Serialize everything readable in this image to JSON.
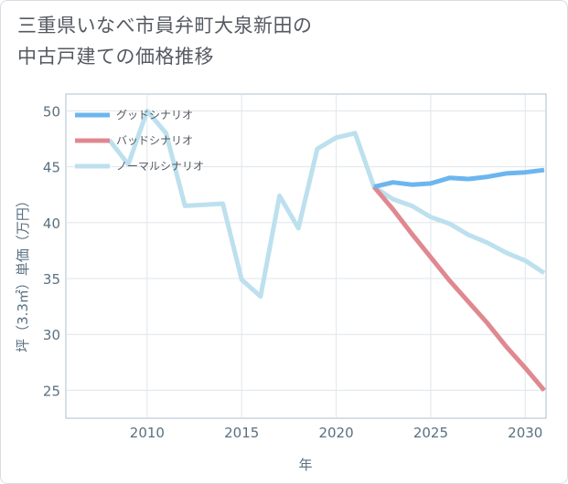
{
  "chart_data": {
    "type": "line",
    "title_lines": [
      "三重県いなべ市員弁町大泉新田の",
      "中古戸建ての価格推移"
    ],
    "xlabel": "年",
    "ylabel": "坪（3.3㎡）単価（万円）",
    "xlim": [
      2005.7,
      2031.1
    ],
    "ylim": [
      22.5,
      51.5
    ],
    "x_ticks": [
      2010,
      2015,
      2020,
      2025,
      2030
    ],
    "y_ticks": [
      25,
      30,
      35,
      40,
      45,
      50
    ],
    "grid": true,
    "legend_position": "top-left",
    "series": [
      {
        "name": "グッドシナリオ",
        "color": "#6cb6ef",
        "x": [
          2022,
          2023,
          2024,
          2025,
          2026,
          2027,
          2028,
          2029,
          2030,
          2031
        ],
        "y": [
          43.2,
          43.6,
          43.4,
          43.5,
          44.0,
          43.9,
          44.1,
          44.4,
          44.5,
          44.7
        ]
      },
      {
        "name": "バッドシナリオ",
        "color": "#e08890",
        "x": [
          2022,
          2023,
          2024,
          2025,
          2026,
          2027,
          2028,
          2029,
          2030,
          2031
        ],
        "y": [
          43.2,
          41.2,
          39.0,
          36.9,
          34.8,
          32.9,
          31.0,
          28.9,
          27.0,
          25.0
        ]
      },
      {
        "name": "ノーマルシナリオ",
        "color": "#bde0ee",
        "x": [
          2008,
          2009,
          2010,
          2011,
          2012,
          2013,
          2014,
          2015,
          2016,
          2017,
          2018,
          2019,
          2020,
          2021,
          2022,
          2023,
          2024,
          2025,
          2026,
          2027,
          2028,
          2029,
          2030,
          2031
        ],
        "y": [
          47.4,
          45.2,
          50.0,
          48.0,
          41.5,
          41.6,
          41.7,
          34.9,
          33.4,
          42.4,
          39.5,
          46.6,
          47.6,
          48.0,
          43.2,
          42.1,
          41.5,
          40.5,
          39.9,
          38.9,
          38.2,
          37.3,
          36.6,
          35.5
        ]
      }
    ]
  }
}
